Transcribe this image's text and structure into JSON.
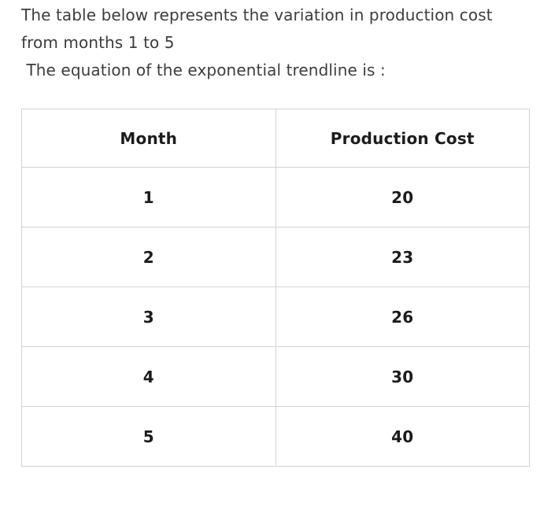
{
  "page": {
    "background_color": "#ffffff",
    "body_text_color": "#3d3d3d",
    "table_text_color": "#1c1c1c",
    "table_border_color": "#d1d1d1"
  },
  "question": {
    "line1": "The table below represents the variation in production cost",
    "line2": "from months 1 to 5",
    "line3": " The equation of the exponential trendline is :"
  },
  "chart_data": {
    "type": "table",
    "columns": [
      "Month",
      "Production Cost"
    ],
    "rows": [
      [
        "1",
        "20"
      ],
      [
        "2",
        "23"
      ],
      [
        "3",
        "26"
      ],
      [
        "4",
        "30"
      ],
      [
        "5",
        "40"
      ]
    ]
  }
}
